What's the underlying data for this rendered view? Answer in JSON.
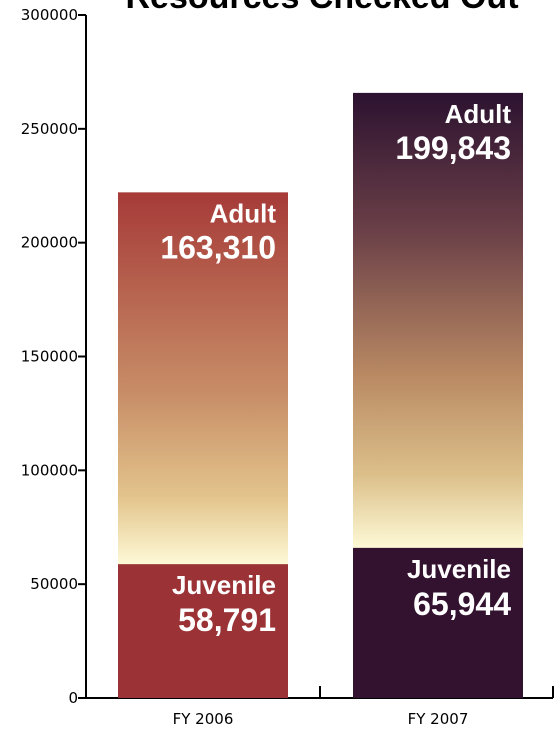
{
  "chart_data": {
    "type": "bar",
    "stacked": true,
    "title": "Resources Checked Out",
    "categories": [
      "FY 2006",
      "FY 2007"
    ],
    "series": [
      {
        "name": "Juvenile",
        "values": [
          58791,
          65944
        ],
        "value_labels": [
          "58,791",
          "65,944"
        ]
      },
      {
        "name": "Adult",
        "values": [
          163310,
          199843
        ],
        "value_labels": [
          "163,310",
          "199,843"
        ]
      }
    ],
    "ylim": [
      0,
      300000
    ],
    "yticks": [
      "0",
      "50000",
      "100000",
      "150000",
      "200000",
      "250000",
      "300000"
    ],
    "xlabel": "",
    "ylabel": "",
    "grid": false,
    "legend": "none",
    "colors": {
      "fy2006_juvenile": "#9b3336",
      "fy2006_adult_top": "#a63a38",
      "fy2006_adult_mid": "#c88f68",
      "fy2007_juvenile": "#33122f",
      "fy2007_adult_top": "#2c1230",
      "fy2007_adult_mid": "#b98963",
      "glow": "#fdf9d6",
      "fy2006_juvenile_text": "#ffffff",
      "fy2006_adult_text": "#ffffff",
      "fy2007_juvenile_text": "#ffffff",
      "fy2007_adult_text": "#ffffff"
    }
  }
}
